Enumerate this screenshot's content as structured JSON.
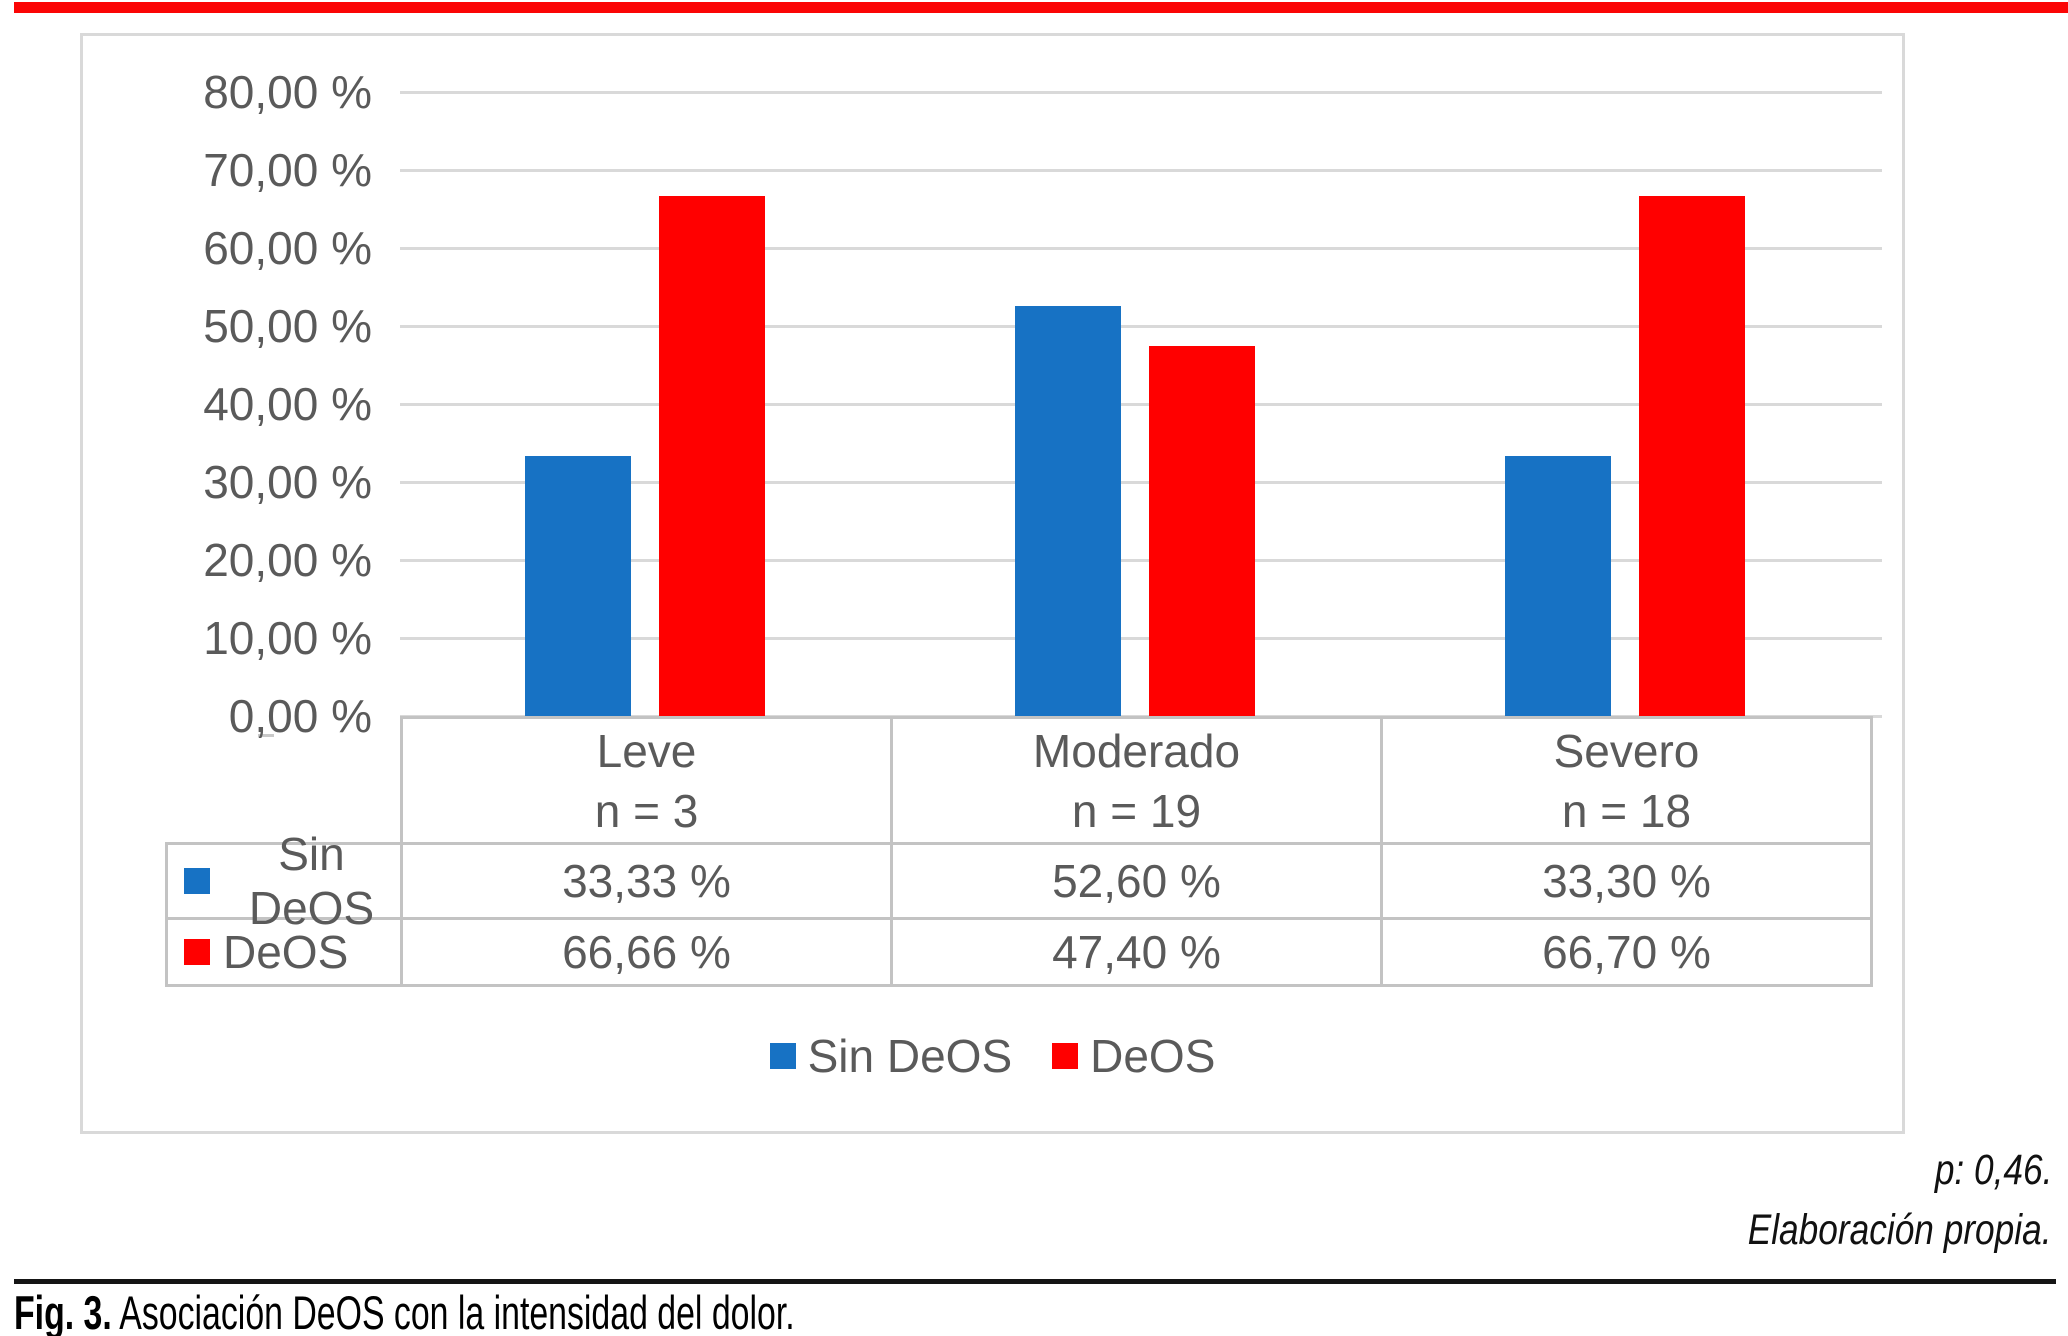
{
  "page": {
    "accent_red": "#fb0505",
    "note_line1": "p: 0,46.",
    "note_line2": "Elaboración propia.",
    "caption_prefix": "Fig. 3.",
    "caption_text": " Asociación DeOS con la intensidad del dolor."
  },
  "chart_data": {
    "type": "bar",
    "categories": [
      "Leve",
      "Moderado",
      "Severo"
    ],
    "category_sublabels": [
      "n = 3",
      "n = 19",
      "n = 18"
    ],
    "series": [
      {
        "name": "Sin DeOS",
        "color": "#1772c4",
        "values": [
          33.33,
          52.6,
          33.3
        ],
        "value_labels": [
          "33,33 %",
          "52,60 %",
          "33,30 %"
        ]
      },
      {
        "name": "DeOS",
        "color": "#ff0000",
        "values": [
          66.66,
          47.4,
          66.7
        ],
        "value_labels": [
          "66,66 %",
          "47,40 %",
          "66,70 %"
        ]
      }
    ],
    "ylim": [
      0,
      80
    ],
    "ytick_step": 10,
    "ytick_labels": [
      "0,00 %",
      "10,00 %",
      "20,00 %",
      "30,00 %",
      "40,00 %",
      "50,00 %",
      "60,00 %",
      "70,00 %",
      "80,00 %"
    ],
    "grid": true,
    "legend_position": "bottom",
    "shows_data_table": true
  }
}
